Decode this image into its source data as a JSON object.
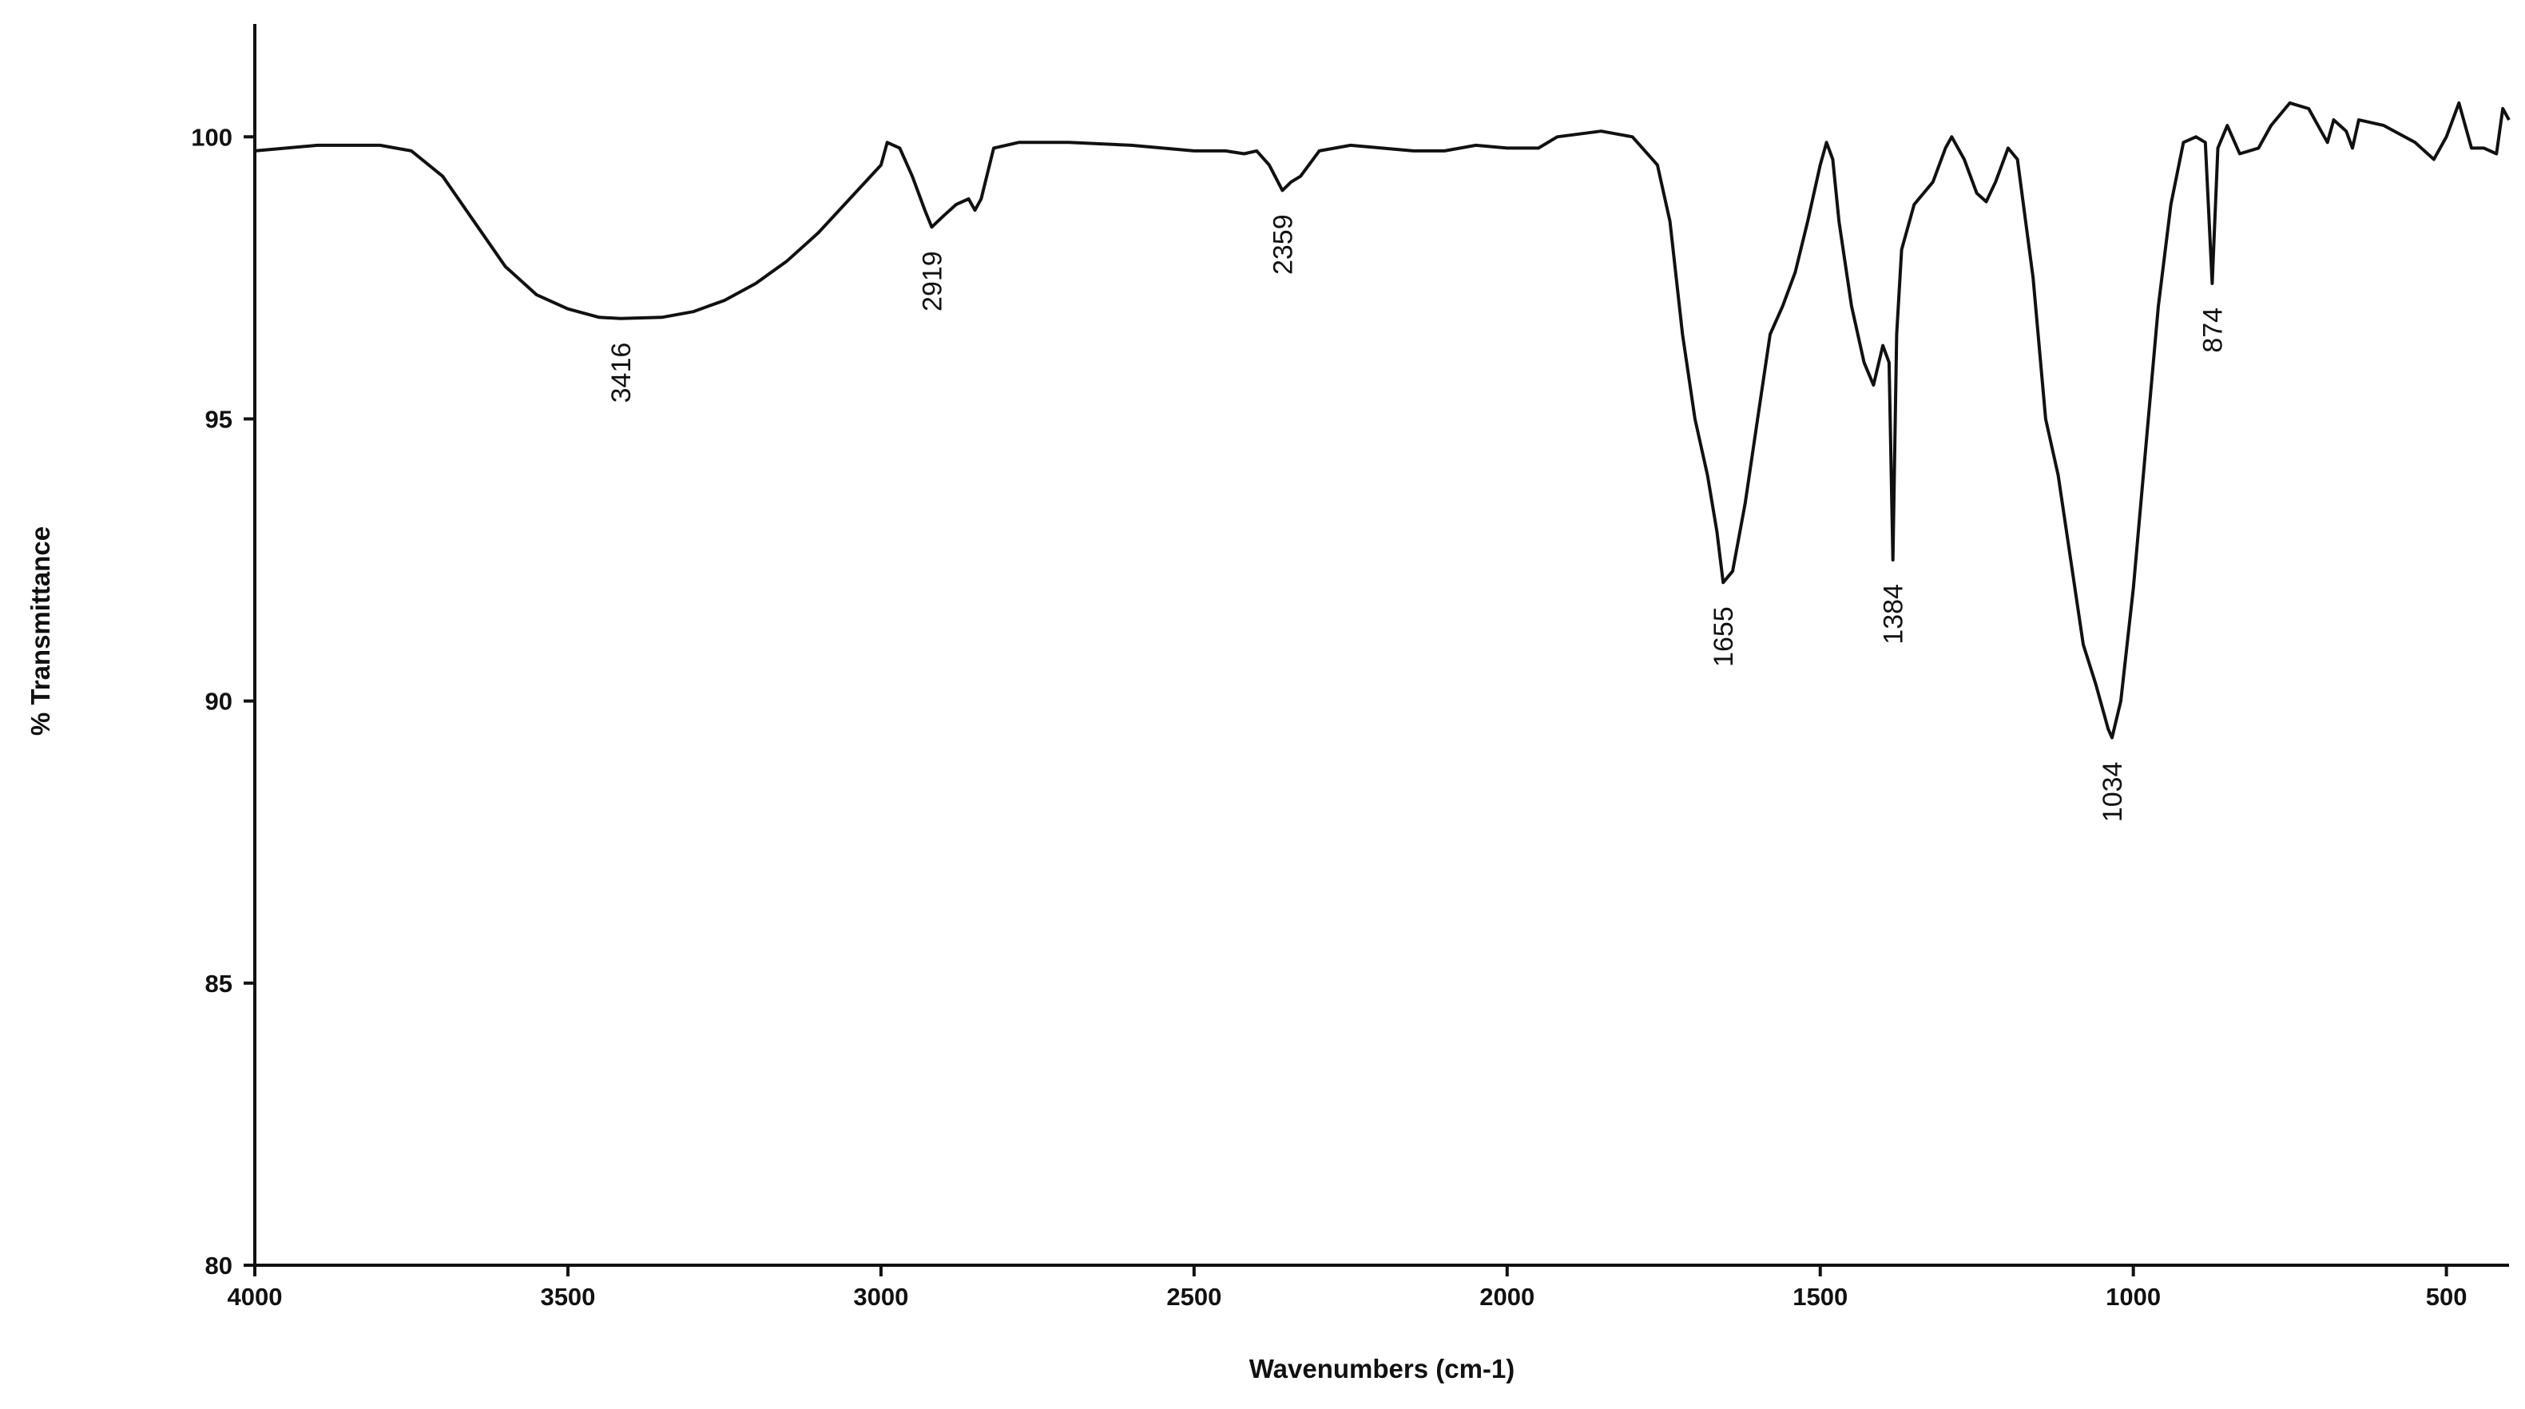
{
  "chart_data": {
    "type": "line",
    "x_label": "Wavenumbers (cm-1)",
    "y_label": "% Transmittance",
    "xlim": [
      4000,
      400
    ],
    "ylim": [
      80,
      102
    ],
    "xticks": [
      4000,
      3500,
      3000,
      2500,
      2000,
      1500,
      1000,
      500
    ],
    "yticks": [
      80,
      85,
      90,
      95,
      100
    ],
    "color": "#111111",
    "peaks": [
      3416,
      2919,
      2359,
      1655,
      1384,
      1034,
      874
    ],
    "x": [
      4000,
      3900,
      3800,
      3750,
      3700,
      3650,
      3600,
      3550,
      3500,
      3450,
      3416,
      3350,
      3300,
      3250,
      3200,
      3150,
      3100,
      3050,
      3000,
      2990,
      2970,
      2950,
      2930,
      2919,
      2900,
      2880,
      2860,
      2850,
      2840,
      2820,
      2780,
      2700,
      2600,
      2500,
      2450,
      2420,
      2400,
      2380,
      2359,
      2345,
      2330,
      2300,
      2250,
      2150,
      2100,
      2050,
      2000,
      1950,
      1920,
      1850,
      1800,
      1760,
      1740,
      1720,
      1700,
      1680,
      1665,
      1655,
      1640,
      1620,
      1600,
      1580,
      1560,
      1540,
      1520,
      1500,
      1490,
      1480,
      1470,
      1450,
      1430,
      1415,
      1400,
      1390,
      1384,
      1378,
      1370,
      1350,
      1320,
      1300,
      1290,
      1270,
      1250,
      1235,
      1220,
      1200,
      1185,
      1160,
      1140,
      1120,
      1100,
      1080,
      1060,
      1040,
      1034,
      1020,
      1000,
      980,
      960,
      940,
      920,
      900,
      885,
      874,
      865,
      850,
      830,
      800,
      780,
      750,
      720,
      700,
      690,
      680,
      660,
      650,
      640,
      600,
      550,
      520,
      500,
      480,
      460,
      440,
      420,
      410,
      400
    ],
    "values": [
      99.75,
      99.85,
      99.85,
      99.75,
      99.3,
      98.5,
      97.7,
      97.2,
      96.95,
      96.8,
      96.78,
      96.8,
      96.9,
      97.1,
      97.4,
      97.8,
      98.3,
      98.9,
      99.5,
      99.9,
      99.8,
      99.3,
      98.7,
      98.4,
      98.6,
      98.8,
      98.9,
      98.7,
      98.9,
      99.8,
      99.9,
      99.9,
      99.85,
      99.75,
      99.75,
      99.7,
      99.75,
      99.5,
      99.05,
      99.2,
      99.3,
      99.75,
      99.85,
      99.75,
      99.75,
      99.85,
      99.8,
      99.8,
      100.0,
      100.1,
      100.0,
      99.5,
      98.5,
      96.5,
      95.0,
      94.0,
      93.0,
      92.1,
      92.3,
      93.5,
      95.0,
      96.5,
      97.0,
      97.6,
      98.5,
      99.5,
      99.9,
      99.6,
      98.5,
      97.0,
      96.0,
      95.6,
      96.3,
      96.0,
      92.5,
      96.5,
      98.0,
      98.8,
      99.2,
      99.8,
      100.0,
      99.6,
      99.0,
      98.85,
      99.2,
      99.8,
      99.6,
      97.5,
      95.0,
      94.0,
      92.5,
      91.0,
      90.3,
      89.5,
      89.35,
      90.0,
      92.0,
      94.5,
      97.0,
      98.8,
      99.9,
      100.0,
      99.9,
      97.4,
      99.8,
      100.2,
      99.7,
      99.8,
      100.2,
      100.6,
      100.5,
      100.1,
      99.9,
      100.3,
      100.1,
      99.8,
      100.3,
      100.2,
      99.9,
      99.6,
      100.0,
      100.6,
      99.8,
      99.8,
      99.7,
      100.5,
      100.3
    ]
  }
}
